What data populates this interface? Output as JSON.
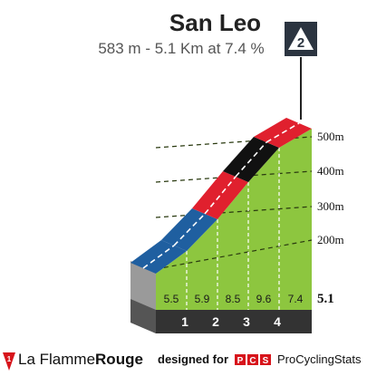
{
  "header": {
    "title": "San Leo",
    "subtitle": "583 m - 5.1 Km at 7.4 %"
  },
  "badge": {
    "category": "2"
  },
  "footer": {
    "brand_prefix": "La Flamme",
    "brand_suffix": "Rouge",
    "designed": "designed for",
    "pcs_logo": "PCS",
    "pcs_name": "ProCyclingStats"
  },
  "chart_data": {
    "type": "area",
    "total_km": "5.1",
    "km_markers": [
      "1",
      "2",
      "3",
      "4"
    ],
    "segments": [
      {
        "label": "5.5",
        "gradient": 5.5,
        "color": "#1f5fa0"
      },
      {
        "label": "5.9",
        "gradient": 5.9,
        "color": "#1f5fa0"
      },
      {
        "label": "8.5",
        "gradient": 8.5,
        "color": "#e0202e"
      },
      {
        "label": "9.6",
        "gradient": 9.6,
        "color": "#111111"
      },
      {
        "label": "7.4",
        "gradient": 7.4,
        "color": "#e0202e"
      }
    ],
    "elevation_ticks": [
      "200m",
      "300m",
      "400m",
      "500m"
    ],
    "colors": {
      "slope_fill": "#8dc63f",
      "base": "#333333",
      "base_start": "#9a9a9a",
      "road_dash": "#ffffff"
    }
  }
}
